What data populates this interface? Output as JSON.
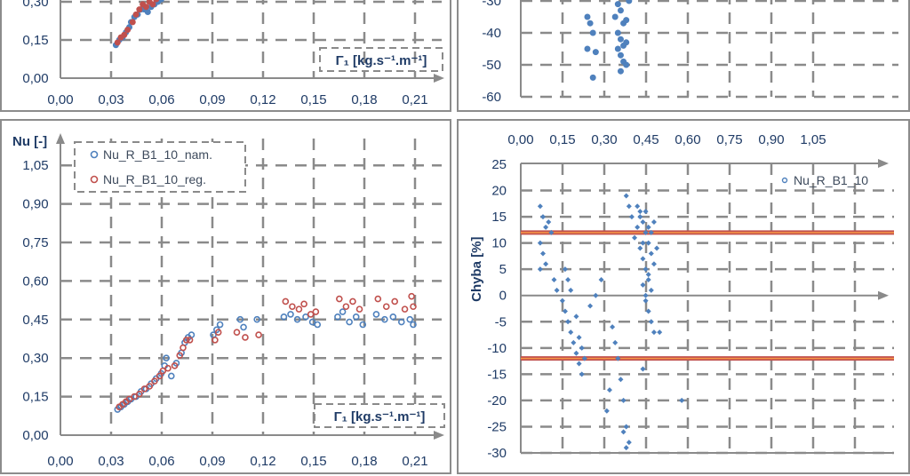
{
  "chart_data": [
    {
      "id": "top_left",
      "type": "scatter",
      "y_ticks": [
        "0,00",
        "0,15",
        "0,30"
      ],
      "x_ticks": [
        "0,00",
        "0,03",
        "0,06",
        "0,09",
        "0,12",
        "0,15",
        "0,18",
        "0,21"
      ],
      "xlim": [
        0,
        0.21
      ],
      "x_axis_label": "Γ₁ [kg.s⁻¹.m⁻¹]",
      "series": [
        {
          "color": "#4f81bd",
          "points": [
            [
              0.033,
              0.13
            ],
            [
              0.035,
              0.15
            ],
            [
              0.037,
              0.16
            ],
            [
              0.039,
              0.18
            ],
            [
              0.041,
              0.2
            ],
            [
              0.042,
              0.22
            ],
            [
              0.044,
              0.24
            ],
            [
              0.046,
              0.25
            ],
            [
              0.048,
              0.27
            ],
            [
              0.05,
              0.27
            ],
            [
              0.052,
              0.26
            ],
            [
              0.054,
              0.28
            ],
            [
              0.056,
              0.29
            ],
            [
              0.058,
              0.3
            ],
            [
              0.06,
              0.31
            ]
          ]
        },
        {
          "color": "#c0504d",
          "points": [
            [
              0.034,
              0.14
            ],
            [
              0.036,
              0.16
            ],
            [
              0.038,
              0.17
            ],
            [
              0.04,
              0.19
            ],
            [
              0.043,
              0.22
            ],
            [
              0.045,
              0.25
            ],
            [
              0.047,
              0.27
            ],
            [
              0.049,
              0.29
            ],
            [
              0.051,
              0.28
            ],
            [
              0.053,
              0.3
            ],
            [
              0.055,
              0.29
            ],
            [
              0.057,
              0.31
            ]
          ]
        }
      ]
    },
    {
      "id": "top_right",
      "type": "scatter",
      "y_ticks": [
        "-30",
        "-40",
        "-50",
        "-60"
      ],
      "ylim": [
        -60,
        -20
      ],
      "xlim": [
        0,
        1.2
      ],
      "series": [
        {
          "color": "#4f81bd",
          "points": [
            [
              0.24,
              -35
            ],
            [
              0.25,
              -37
            ],
            [
              0.26,
              -40
            ],
            [
              0.24,
              -45
            ],
            [
              0.27,
              -46
            ],
            [
              0.26,
              -54
            ],
            [
              0.33,
              -25
            ],
            [
              0.34,
              -28
            ],
            [
              0.35,
              -31
            ],
            [
              0.36,
              -33
            ],
            [
              0.34,
              -35
            ],
            [
              0.37,
              -37
            ],
            [
              0.35,
              -40
            ],
            [
              0.36,
              -42
            ],
            [
              0.38,
              -43
            ],
            [
              0.35,
              -45
            ],
            [
              0.36,
              -47
            ],
            [
              0.37,
              -49
            ],
            [
              0.38,
              -50
            ],
            [
              0.36,
              -52
            ],
            [
              0.39,
              -30
            ],
            [
              0.38,
              -36
            ],
            [
              0.37,
              -44
            ]
          ]
        }
      ]
    },
    {
      "id": "bottom_left",
      "type": "scatter",
      "y_axis_label": "Nu [-]",
      "x_axis_label": "Γ₁ [kg.s⁻¹.m⁻¹]",
      "y_ticks": [
        "0,00",
        "0,15",
        "0,30",
        "0,45",
        "0,60",
        "0,75",
        "0,90",
        "1,05"
      ],
      "x_ticks": [
        "0,00",
        "0,03",
        "0,06",
        "0,09",
        "0,12",
        "0,15",
        "0,18",
        "0,21"
      ],
      "xlim": [
        0,
        0.225
      ],
      "ylim": [
        0,
        1.05
      ],
      "legend": [
        "Nu_R_B1_10_nam.",
        "Nu_R_B1_10_reg."
      ],
      "series": [
        {
          "name": "Nu_R_B1_10_nam.",
          "color": "#4f81bd",
          "points": [
            [
              0.034,
              0.1
            ],
            [
              0.036,
              0.11
            ],
            [
              0.038,
              0.12
            ],
            [
              0.04,
              0.13
            ],
            [
              0.042,
              0.14
            ],
            [
              0.045,
              0.15
            ],
            [
              0.048,
              0.17
            ],
            [
              0.051,
              0.18
            ],
            [
              0.054,
              0.2
            ],
            [
              0.057,
              0.22
            ],
            [
              0.06,
              0.24
            ],
            [
              0.062,
              0.27
            ],
            [
              0.063,
              0.3
            ],
            [
              0.066,
              0.23
            ],
            [
              0.069,
              0.28
            ],
            [
              0.072,
              0.32
            ],
            [
              0.074,
              0.36
            ],
            [
              0.076,
              0.38
            ],
            [
              0.078,
              0.39
            ],
            [
              0.091,
              0.39
            ],
            [
              0.093,
              0.41
            ],
            [
              0.095,
              0.43
            ],
            [
              0.107,
              0.45
            ],
            [
              0.109,
              0.42
            ],
            [
              0.117,
              0.45
            ],
            [
              0.133,
              0.46
            ],
            [
              0.137,
              0.47
            ],
            [
              0.141,
              0.45
            ],
            [
              0.146,
              0.46
            ],
            [
              0.15,
              0.44
            ],
            [
              0.153,
              0.43
            ],
            [
              0.165,
              0.46
            ],
            [
              0.168,
              0.48
            ],
            [
              0.172,
              0.44
            ],
            [
              0.176,
              0.46
            ],
            [
              0.18,
              0.43
            ],
            [
              0.188,
              0.47
            ],
            [
              0.193,
              0.45
            ],
            [
              0.198,
              0.46
            ],
            [
              0.203,
              0.44
            ],
            [
              0.208,
              0.45
            ],
            [
              0.21,
              0.43
            ]
          ]
        },
        {
          "name": "Nu_R_B1_10_reg.",
          "color": "#c0504d",
          "points": [
            [
              0.035,
              0.11
            ],
            [
              0.037,
              0.12
            ],
            [
              0.039,
              0.13
            ],
            [
              0.041,
              0.14
            ],
            [
              0.044,
              0.15
            ],
            [
              0.047,
              0.16
            ],
            [
              0.05,
              0.18
            ],
            [
              0.053,
              0.19
            ],
            [
              0.056,
              0.21
            ],
            [
              0.059,
              0.23
            ],
            [
              0.061,
              0.25
            ],
            [
              0.064,
              0.26
            ],
            [
              0.068,
              0.27
            ],
            [
              0.071,
              0.31
            ],
            [
              0.073,
              0.34
            ],
            [
              0.075,
              0.37
            ],
            [
              0.077,
              0.37
            ],
            [
              0.092,
              0.37
            ],
            [
              0.094,
              0.4
            ],
            [
              0.105,
              0.4
            ],
            [
              0.11,
              0.38
            ],
            [
              0.118,
              0.39
            ],
            [
              0.134,
              0.52
            ],
            [
              0.138,
              0.5
            ],
            [
              0.142,
              0.49
            ],
            [
              0.145,
              0.51
            ],
            [
              0.149,
              0.47
            ],
            [
              0.152,
              0.48
            ],
            [
              0.166,
              0.53
            ],
            [
              0.17,
              0.5
            ],
            [
              0.174,
              0.52
            ],
            [
              0.178,
              0.49
            ],
            [
              0.189,
              0.53
            ],
            [
              0.194,
              0.5
            ],
            [
              0.199,
              0.52
            ],
            [
              0.205,
              0.49
            ],
            [
              0.209,
              0.54
            ],
            [
              0.21,
              0.5
            ]
          ]
        }
      ]
    },
    {
      "id": "bottom_right",
      "type": "scatter",
      "y_axis_label": "Chyba [%]",
      "x_ticks": [
        "0,00",
        "0,15",
        "0,30",
        "0,45",
        "0,60",
        "0,75",
        "0,90",
        "1,05"
      ],
      "y_ticks": [
        "25",
        "20",
        "15",
        "10",
        "5",
        "0",
        "-5",
        "-10",
        "-15",
        "-20",
        "-25",
        "-30"
      ],
      "xlim": [
        0,
        1.2
      ],
      "ylim": [
        -30,
        25
      ],
      "legend": [
        "Nu_R_B1_10"
      ],
      "reference_lines": [
        12,
        -12
      ],
      "series": [
        {
          "name": "Nu_R_B1_10",
          "color": "#4f81bd",
          "points": [
            [
              0.07,
              17
            ],
            [
              0.08,
              15
            ],
            [
              0.09,
              13
            ],
            [
              0.1,
              14
            ],
            [
              0.07,
              10
            ],
            [
              0.08,
              8
            ],
            [
              0.09,
              6
            ],
            [
              0.07,
              5
            ],
            [
              0.11,
              12
            ],
            [
              0.12,
              3
            ],
            [
              0.13,
              1
            ],
            [
              0.15,
              -1
            ],
            [
              0.16,
              -3
            ],
            [
              0.17,
              -5
            ],
            [
              0.18,
              -7
            ],
            [
              0.19,
              -9
            ],
            [
              0.2,
              -11
            ],
            [
              0.21,
              -13
            ],
            [
              0.22,
              -15
            ],
            [
              0.16,
              5
            ],
            [
              0.17,
              3
            ],
            [
              0.18,
              1
            ],
            [
              0.2,
              -4
            ],
            [
              0.21,
              -8
            ],
            [
              0.22,
              -10
            ],
            [
              0.23,
              -12
            ],
            [
              0.25,
              -2
            ],
            [
              0.27,
              0
            ],
            [
              0.29,
              3
            ],
            [
              0.31,
              -22
            ],
            [
              0.32,
              -18
            ],
            [
              0.33,
              -6
            ],
            [
              0.34,
              -9
            ],
            [
              0.35,
              -12
            ],
            [
              0.36,
              -16
            ],
            [
              0.37,
              -20
            ],
            [
              0.38,
              -25
            ],
            [
              0.39,
              -28
            ],
            [
              0.38,
              -29
            ],
            [
              0.37,
              -26
            ],
            [
              0.38,
              19
            ],
            [
              0.39,
              17
            ],
            [
              0.4,
              15
            ],
            [
              0.41,
              11
            ],
            [
              0.42,
              13
            ],
            [
              0.43,
              9
            ],
            [
              0.44,
              7
            ],
            [
              0.45,
              5
            ],
            [
              0.46,
              3
            ],
            [
              0.47,
              1
            ],
            [
              0.43,
              16
            ],
            [
              0.44,
              14
            ],
            [
              0.45,
              12
            ],
            [
              0.46,
              10
            ],
            [
              0.47,
              8
            ],
            [
              0.48,
              6
            ],
            [
              0.45,
              -1
            ],
            [
              0.46,
              -3
            ],
            [
              0.47,
              -5
            ],
            [
              0.48,
              -7
            ],
            [
              0.44,
              -14
            ],
            [
              0.43,
              15
            ],
            [
              0.42,
              17
            ],
            [
              0.5,
              -7
            ],
            [
              0.58,
              -20
            ],
            [
              0.44,
              2
            ],
            [
              0.45,
              0
            ],
            [
              0.46,
              4
            ],
            [
              0.47,
              12
            ],
            [
              0.48,
              14
            ],
            [
              0.49,
              9
            ],
            [
              0.44,
              10
            ],
            [
              0.45,
              16
            ],
            [
              0.46,
              13
            ]
          ]
        }
      ]
    }
  ]
}
